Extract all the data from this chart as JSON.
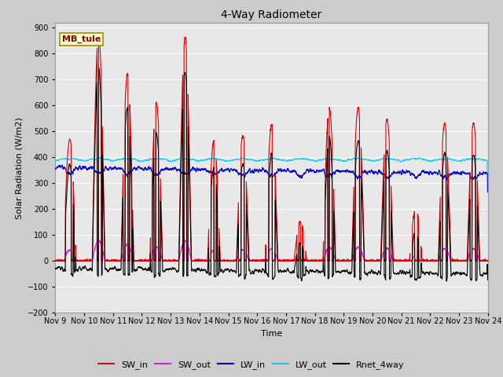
{
  "title": "4-Way Radiometer",
  "xlabel": "Time",
  "ylabel": "Solar Radiation (W/m2)",
  "ylim": [
    -200,
    920
  ],
  "yticks": [
    -200,
    -100,
    0,
    100,
    200,
    300,
    400,
    500,
    600,
    700,
    800,
    900
  ],
  "xlim": [
    0,
    15
  ],
  "xtick_labels": [
    "Nov 9",
    "Nov 10",
    "Nov 11",
    "Nov 12",
    "Nov 13",
    "Nov 14",
    "Nov 15",
    "Nov 16",
    "Nov 17",
    "Nov 18",
    "Nov 19",
    "Nov 20",
    "Nov 21",
    "Nov 22",
    "Nov 23",
    "Nov 24"
  ],
  "xtick_positions": [
    0,
    1,
    2,
    3,
    4,
    5,
    6,
    7,
    8,
    9,
    10,
    11,
    12,
    13,
    14,
    15
  ],
  "station_label": "MB_tule",
  "legend_entries": [
    "SW_in",
    "SW_out",
    "LW_in",
    "LW_out",
    "Rnet_4way"
  ],
  "colors": {
    "SW_in": "#dd0000",
    "SW_out": "#ff00ff",
    "LW_in": "#0000cc",
    "LW_out": "#00ccff",
    "Rnet_4way": "#000000"
  },
  "fig_bg": "#cccccc",
  "plot_bg": "#e8e8e8",
  "grid_color": "#ffffff"
}
